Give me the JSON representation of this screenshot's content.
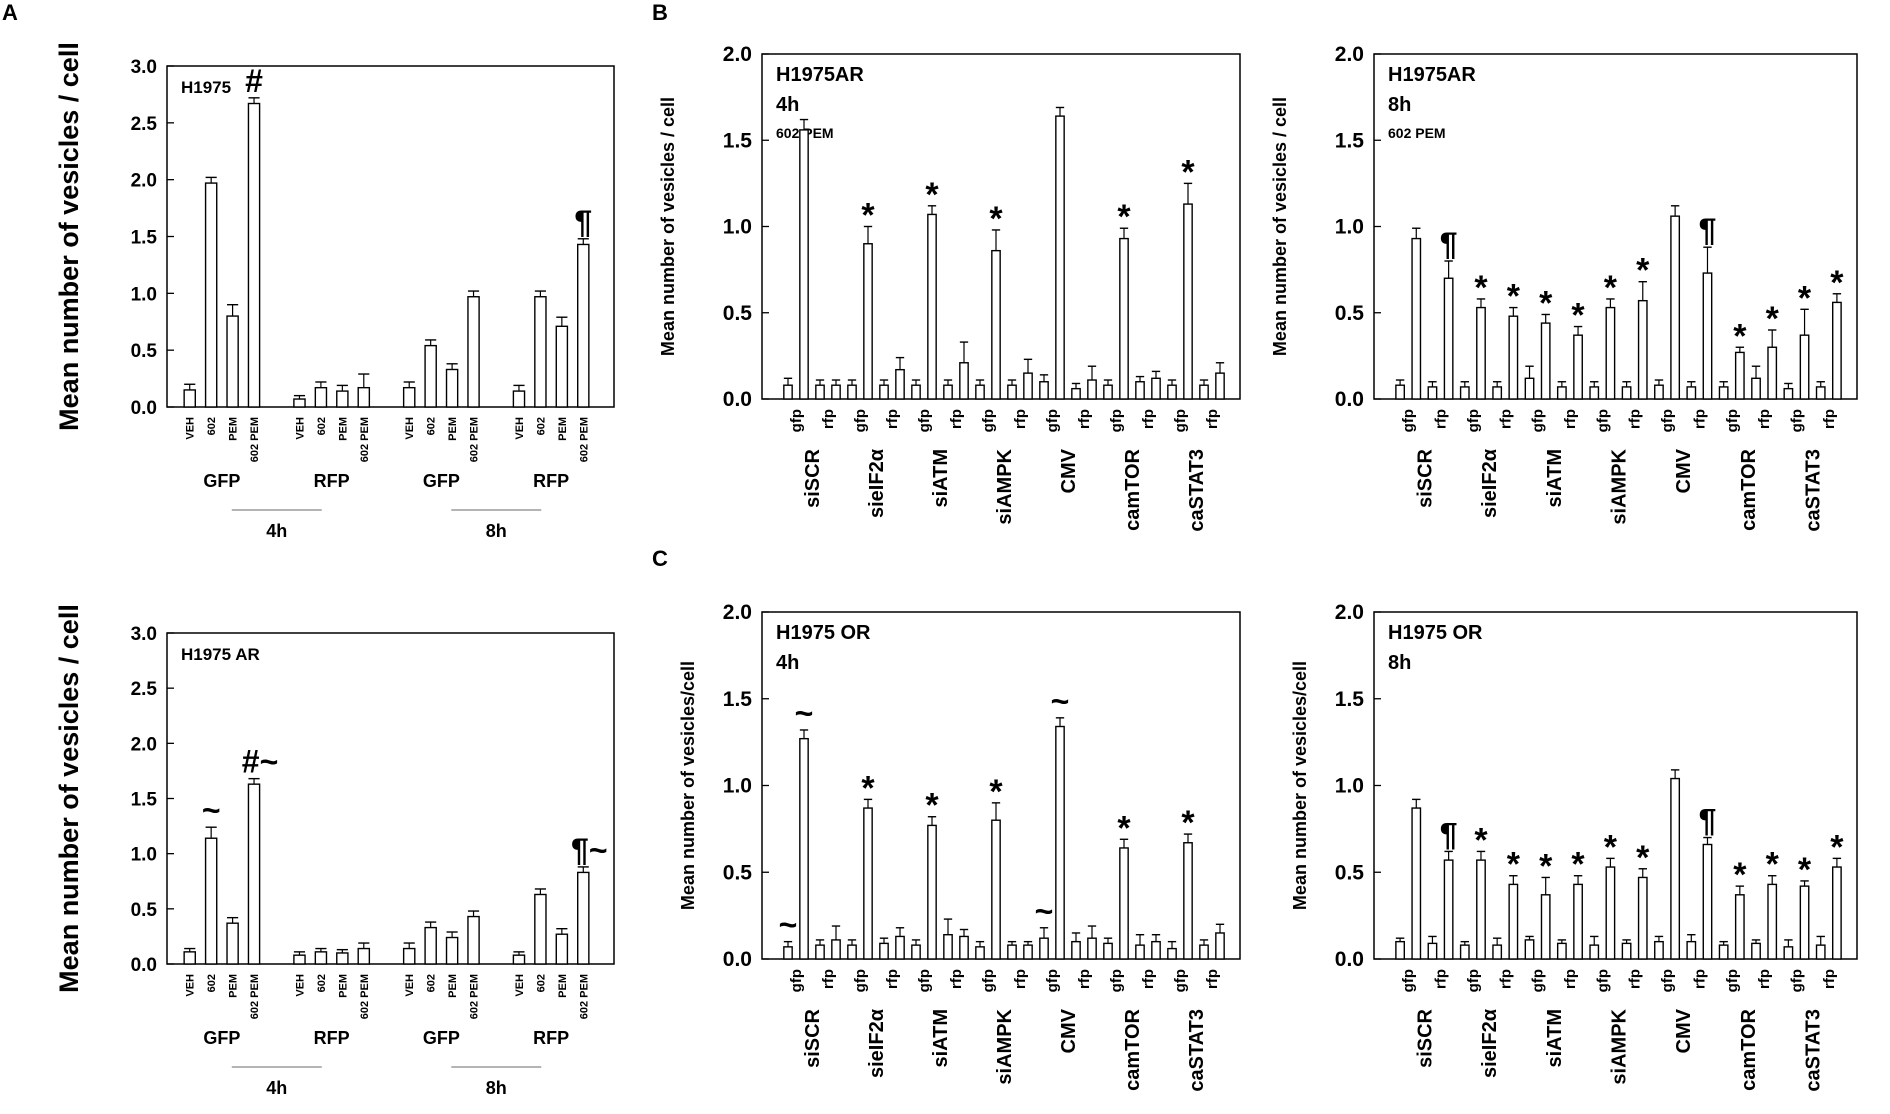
{
  "figure": {
    "panel_letters": [
      "A",
      "B",
      "C"
    ]
  },
  "chart_data": [
    {
      "type": "bar",
      "panel": "A",
      "title": "H1975",
      "ylabel": "Mean number of vesicles / cell",
      "ylim": [
        0,
        3.0
      ],
      "yticks": [
        "0.0",
        "0.5",
        "1.0",
        "1.5",
        "2.0",
        "2.5",
        "3.0"
      ],
      "categories": [
        "VEH",
        "602",
        "PEM",
        "602 PEM",
        "VEH",
        "602",
        "PEM",
        "602 PEM",
        "VEH",
        "602",
        "PEM",
        "602 PEM",
        "VEH",
        "602",
        "PEM",
        "602 PEM"
      ],
      "values": [
        0.15,
        1.97,
        0.8,
        2.67,
        0.07,
        0.17,
        0.14,
        0.17,
        0.17,
        0.54,
        0.33,
        0.97,
        0.14,
        0.97,
        0.71,
        1.43
      ],
      "errors": [
        0.05,
        0.05,
        0.1,
        0.05,
        0.03,
        0.05,
        0.05,
        0.12,
        0.05,
        0.05,
        0.05,
        0.05,
        0.05,
        0.05,
        0.08,
        0.05
      ],
      "annotations": [
        "",
        "",
        "",
        "#",
        "",
        "",
        "",
        "",
        "",
        "",
        "",
        "",
        "",
        "",
        "",
        "¶"
      ],
      "groups": [
        "GFP",
        "RFP",
        "GFP",
        "RFP"
      ],
      "timepoints": [
        "4h",
        "8h"
      ]
    },
    {
      "type": "bar",
      "panel": "A",
      "title": "H1975 AR",
      "ylabel": "Mean number of vesicles / cell",
      "ylim": [
        0,
        3.0
      ],
      "yticks": [
        "0.0",
        "0.5",
        "1.0",
        "1.5",
        "2.0",
        "2.5",
        "3.0"
      ],
      "categories": [
        "VEH",
        "602",
        "PEM",
        "602 PEM",
        "VEH",
        "602",
        "PEM",
        "602 PEM",
        "VEH",
        "602",
        "PEM",
        "602 PEM",
        "VEH",
        "602",
        "PEM",
        "602 PEM"
      ],
      "values": [
        0.11,
        1.14,
        0.37,
        1.63,
        0.08,
        0.11,
        0.1,
        0.14,
        0.14,
        0.33,
        0.24,
        0.43,
        0.08,
        0.63,
        0.27,
        0.83
      ],
      "errors": [
        0.03,
        0.1,
        0.05,
        0.05,
        0.03,
        0.03,
        0.03,
        0.05,
        0.05,
        0.05,
        0.05,
        0.05,
        0.03,
        0.05,
        0.05,
        0.05
      ],
      "annotations": [
        "",
        "~",
        "",
        "#~",
        "",
        "",
        "",
        "",
        "",
        "",
        "",
        "",
        "",
        "",
        "",
        "¶~"
      ],
      "groups": [
        "GFP",
        "RFP",
        "GFP",
        "RFP"
      ],
      "timepoints": [
        "4h",
        "8h"
      ]
    },
    {
      "type": "bar",
      "panel": "B",
      "title": "H1975AR",
      "subtitle": "4h",
      "note": "602 PEM",
      "ylabel": "Mean number of vesicles / cell",
      "ylim": [
        0,
        2.0
      ],
      "yticks": [
        "0.0",
        "0.5",
        "1.0",
        "1.5",
        "2.0"
      ],
      "groups": [
        "siSCR",
        "sieIF2α",
        "siATM",
        "siAMPK",
        "CMV",
        "camTOR",
        "caSTAT3"
      ],
      "sub_labels": [
        "gfp",
        "rfp"
      ],
      "values": [
        [
          0.08,
          1.56
        ],
        [
          0.08,
          0.08
        ],
        [
          0.08,
          0.9
        ],
        [
          0.08,
          0.17
        ],
        [
          0.08,
          1.07
        ],
        [
          0.08,
          0.21
        ],
        [
          0.08,
          0.86
        ],
        [
          0.08,
          0.15
        ],
        [
          0.1,
          1.64
        ],
        [
          0.06,
          0.11
        ],
        [
          0.08,
          0.93
        ],
        [
          0.1,
          0.12
        ],
        [
          0.08,
          1.13
        ],
        [
          0.08,
          0.15
        ]
      ],
      "errors": [
        [
          0.04,
          0.06
        ],
        [
          0.03,
          0.03
        ],
        [
          0.03,
          0.1
        ],
        [
          0.03,
          0.07
        ],
        [
          0.03,
          0.05
        ],
        [
          0.03,
          0.12
        ],
        [
          0.03,
          0.12
        ],
        [
          0.03,
          0.08
        ],
        [
          0.04,
          0.05
        ],
        [
          0.03,
          0.08
        ],
        [
          0.03,
          0.06
        ],
        [
          0.03,
          0.04
        ],
        [
          0.03,
          0.12
        ],
        [
          0.03,
          0.06
        ]
      ],
      "annotations": [
        [
          "",
          ""
        ],
        [
          "",
          ""
        ],
        [
          "",
          "*"
        ],
        [
          "",
          ""
        ],
        [
          "",
          "*"
        ],
        [
          "",
          ""
        ],
        [
          "",
          "*"
        ],
        [
          "",
          ""
        ],
        [
          "",
          ""
        ],
        [
          "",
          ""
        ],
        [
          "",
          "*"
        ],
        [
          "",
          ""
        ],
        [
          "",
          "*"
        ],
        [
          "",
          ""
        ]
      ]
    },
    {
      "type": "bar",
      "panel": "B",
      "title": "H1975AR",
      "subtitle": "8h",
      "note": "602 PEM",
      "ylabel": "Mean number of vesicles / cell",
      "ylim": [
        0,
        2.0
      ],
      "yticks": [
        "0.0",
        "0.5",
        "1.0",
        "1.5",
        "2.0"
      ],
      "groups": [
        "siSCR",
        "sieIF2α",
        "siATM",
        "siAMPK",
        "CMV",
        "camTOR",
        "caSTAT3"
      ],
      "sub_labels": [
        "gfp",
        "rfp"
      ],
      "values": [
        [
          0.08,
          0.93
        ],
        [
          0.07,
          0.7
        ],
        [
          0.07,
          0.53
        ],
        [
          0.07,
          0.48
        ],
        [
          0.12,
          0.44
        ],
        [
          0.07,
          0.37
        ],
        [
          0.07,
          0.53
        ],
        [
          0.07,
          0.57
        ],
        [
          0.08,
          1.06
        ],
        [
          0.07,
          0.73
        ],
        [
          0.07,
          0.27
        ],
        [
          0.12,
          0.3
        ],
        [
          0.06,
          0.37
        ],
        [
          0.07,
          0.56
        ]
      ],
      "errors": [
        [
          0.03,
          0.06
        ],
        [
          0.03,
          0.1
        ],
        [
          0.03,
          0.05
        ],
        [
          0.03,
          0.05
        ],
        [
          0.07,
          0.05
        ],
        [
          0.03,
          0.05
        ],
        [
          0.03,
          0.05
        ],
        [
          0.03,
          0.11
        ],
        [
          0.03,
          0.06
        ],
        [
          0.03,
          0.15
        ],
        [
          0.03,
          0.03
        ],
        [
          0.07,
          0.1
        ],
        [
          0.03,
          0.15
        ],
        [
          0.03,
          0.05
        ]
      ],
      "annotations": [
        [
          "",
          ""
        ],
        [
          "",
          "¶"
        ],
        [
          "",
          "*"
        ],
        [
          "",
          "*"
        ],
        [
          "",
          "*"
        ],
        [
          "",
          "*"
        ],
        [
          "",
          "*"
        ],
        [
          "",
          "*"
        ],
        [
          "",
          ""
        ],
        [
          "",
          "¶"
        ],
        [
          "",
          "*"
        ],
        [
          "",
          "*"
        ],
        [
          "",
          "*"
        ],
        [
          "",
          "*"
        ]
      ]
    },
    {
      "type": "bar",
      "panel": "C",
      "title": "H1975 OR",
      "subtitle": "4h",
      "ylabel": "Mean number of vesicles/cell",
      "ylim": [
        0,
        2.0
      ],
      "yticks": [
        "0.0",
        "0.5",
        "1.0",
        "1.5",
        "2.0"
      ],
      "groups": [
        "siSCR",
        "sieIF2α",
        "siATM",
        "siAMPK",
        "CMV",
        "camTOR",
        "caSTAT3"
      ],
      "sub_labels": [
        "gfp",
        "rfp"
      ],
      "values": [
        [
          0.07,
          1.27
        ],
        [
          0.08,
          0.11
        ],
        [
          0.08,
          0.87
        ],
        [
          0.09,
          0.13
        ],
        [
          0.08,
          0.77
        ],
        [
          0.14,
          0.13
        ],
        [
          0.07,
          0.8
        ],
        [
          0.08,
          0.08
        ],
        [
          0.12,
          1.34
        ],
        [
          0.1,
          0.12
        ],
        [
          0.09,
          0.64
        ],
        [
          0.08,
          0.1
        ],
        [
          0.06,
          0.67
        ],
        [
          0.08,
          0.15
        ]
      ],
      "errors": [
        [
          0.03,
          0.05
        ],
        [
          0.03,
          0.08
        ],
        [
          0.03,
          0.05
        ],
        [
          0.03,
          0.05
        ],
        [
          0.03,
          0.05
        ],
        [
          0.09,
          0.04
        ],
        [
          0.03,
          0.1
        ],
        [
          0.02,
          0.02
        ],
        [
          0.06,
          0.05
        ],
        [
          0.05,
          0.07
        ],
        [
          0.03,
          0.05
        ],
        [
          0.06,
          0.04
        ],
        [
          0.04,
          0.05
        ],
        [
          0.03,
          0.05
        ]
      ],
      "annotations": [
        [
          "~",
          "~"
        ],
        [
          "",
          ""
        ],
        [
          "",
          "*"
        ],
        [
          "",
          ""
        ],
        [
          "",
          "*"
        ],
        [
          "",
          ""
        ],
        [
          "",
          "*"
        ],
        [
          "",
          ""
        ],
        [
          "~",
          "~"
        ],
        [
          "",
          ""
        ],
        [
          "",
          "*"
        ],
        [
          "",
          ""
        ],
        [
          "",
          "*"
        ],
        [
          "",
          ""
        ]
      ]
    },
    {
      "type": "bar",
      "panel": "C",
      "title": "H1975 OR",
      "subtitle": "8h",
      "ylabel": "Mean number of vesicles/cell",
      "ylim": [
        0,
        2.0
      ],
      "yticks": [
        "0.0",
        "0.5",
        "1.0",
        "1.5",
        "2.0"
      ],
      "groups": [
        "siSCR",
        "sieIF2α",
        "siATM",
        "siAMPK",
        "CMV",
        "camTOR",
        "caSTAT3"
      ],
      "sub_labels": [
        "gfp",
        "rfp"
      ],
      "values": [
        [
          0.1,
          0.87
        ],
        [
          0.09,
          0.57
        ],
        [
          0.08,
          0.57
        ],
        [
          0.08,
          0.43
        ],
        [
          0.11,
          0.37
        ],
        [
          0.09,
          0.43
        ],
        [
          0.08,
          0.53
        ],
        [
          0.09,
          0.47
        ],
        [
          0.1,
          1.04
        ],
        [
          0.1,
          0.66
        ],
        [
          0.08,
          0.37
        ],
        [
          0.09,
          0.43
        ],
        [
          0.07,
          0.42
        ],
        [
          0.08,
          0.53
        ]
      ],
      "errors": [
        [
          0.02,
          0.05
        ],
        [
          0.04,
          0.05
        ],
        [
          0.02,
          0.05
        ],
        [
          0.04,
          0.05
        ],
        [
          0.02,
          0.1
        ],
        [
          0.02,
          0.05
        ],
        [
          0.05,
          0.05
        ],
        [
          0.02,
          0.05
        ],
        [
          0.03,
          0.05
        ],
        [
          0.04,
          0.04
        ],
        [
          0.02,
          0.05
        ],
        [
          0.02,
          0.05
        ],
        [
          0.04,
          0.03
        ],
        [
          0.05,
          0.05
        ]
      ],
      "annotations": [
        [
          "",
          ""
        ],
        [
          "",
          "¶"
        ],
        [
          "",
          "*"
        ],
        [
          "",
          "*"
        ],
        [
          "",
          "*"
        ],
        [
          "",
          "*"
        ],
        [
          "",
          "*"
        ],
        [
          "",
          "*"
        ],
        [
          "",
          ""
        ],
        [
          "",
          "¶"
        ],
        [
          "",
          "*"
        ],
        [
          "",
          "*"
        ],
        [
          "",
          "*"
        ],
        [
          "",
          "*"
        ]
      ]
    }
  ]
}
